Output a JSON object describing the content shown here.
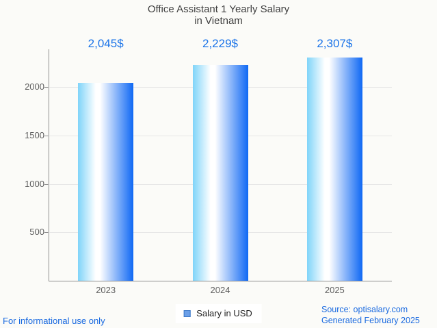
{
  "page": {
    "background": "#fbfbf8"
  },
  "title": {
    "line1": "Office Assistant 1 Yearly Salary",
    "line2": "in Vietnam",
    "color": "#3f3f3f"
  },
  "chart_data": {
    "type": "bar",
    "title": "Office Assistant 1 Yearly Salary in Vietnam",
    "categories": [
      "2023",
      "2024",
      "2025"
    ],
    "series": [
      {
        "name": "Salary in USD",
        "values": [
          2045,
          2229,
          2307
        ]
      }
    ],
    "value_labels": [
      "2,045$",
      "2,229$",
      "2,307$"
    ],
    "xlabel": "",
    "ylabel": "",
    "ylim": [
      0,
      2391
    ],
    "yticks": [
      500,
      1000,
      1500,
      2000
    ],
    "grid": true,
    "legend_position": "bottom",
    "bar_gradient": [
      "#7fd4f9",
      "#ffffff",
      "#0f68f4"
    ],
    "value_label_color": "#1a73e8",
    "axis_color": "#8c8c8c",
    "grid_color": "#e6e6e6",
    "tick_label_color": "#5f5f5f"
  },
  "legend": {
    "label": "Salary in USD",
    "swatch_fill": "#6b9fe8",
    "swatch_border": "#3c78c8"
  },
  "footer": {
    "left": "For informational use only",
    "source": "Source: optisalary.com",
    "generated": "Generated February 2025",
    "color": "#1a6ae0"
  }
}
